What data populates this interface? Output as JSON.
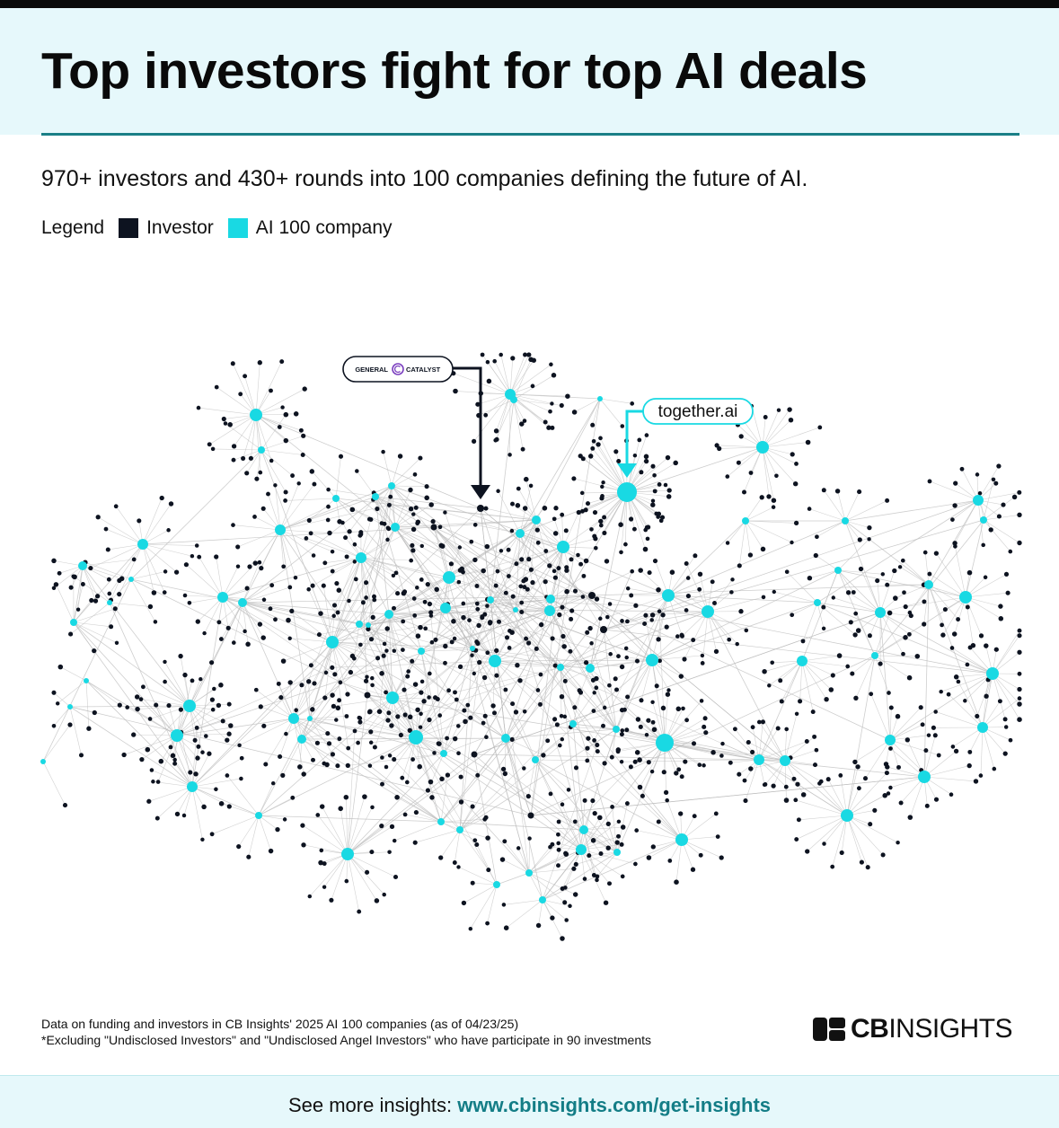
{
  "header": {
    "title": "Top investors fight for top AI deals"
  },
  "subtitle": "970+ investors and 430+ rounds into 100 companies defining the future of AI.",
  "legend": {
    "title": "Legend",
    "items": [
      {
        "label": "Investor",
        "color": "#0d1320"
      },
      {
        "label": "AI 100 company",
        "color": "#19d9e3"
      }
    ]
  },
  "network": {
    "edge_color": "#bdbdbd",
    "investor_color": "#0d1320",
    "company_color": "#19d9e3",
    "callouts": [
      {
        "label_left": "GENERAL",
        "label_right": "CATALYST",
        "icon": "general-catalyst-logo-icon",
        "target": "investor"
      },
      {
        "label": "together.ai",
        "target": "company"
      }
    ]
  },
  "notes": {
    "line1": "Data on funding and investors in CB Insights' 2025 AI 100 companies (as of 04/23/25)",
    "line2": "*Excluding \"Undisclosed Investors\" and \"Undisclosed Angel Investors\" who have participate in 90 investments"
  },
  "brand": {
    "name_bold": "CB",
    "name_rest": "INSIGHTS",
    "icon": "cb-insights-logo-icon"
  },
  "footer": {
    "prefix": "See more insights: ",
    "link": "www.cbinsights.com/get-insights"
  }
}
